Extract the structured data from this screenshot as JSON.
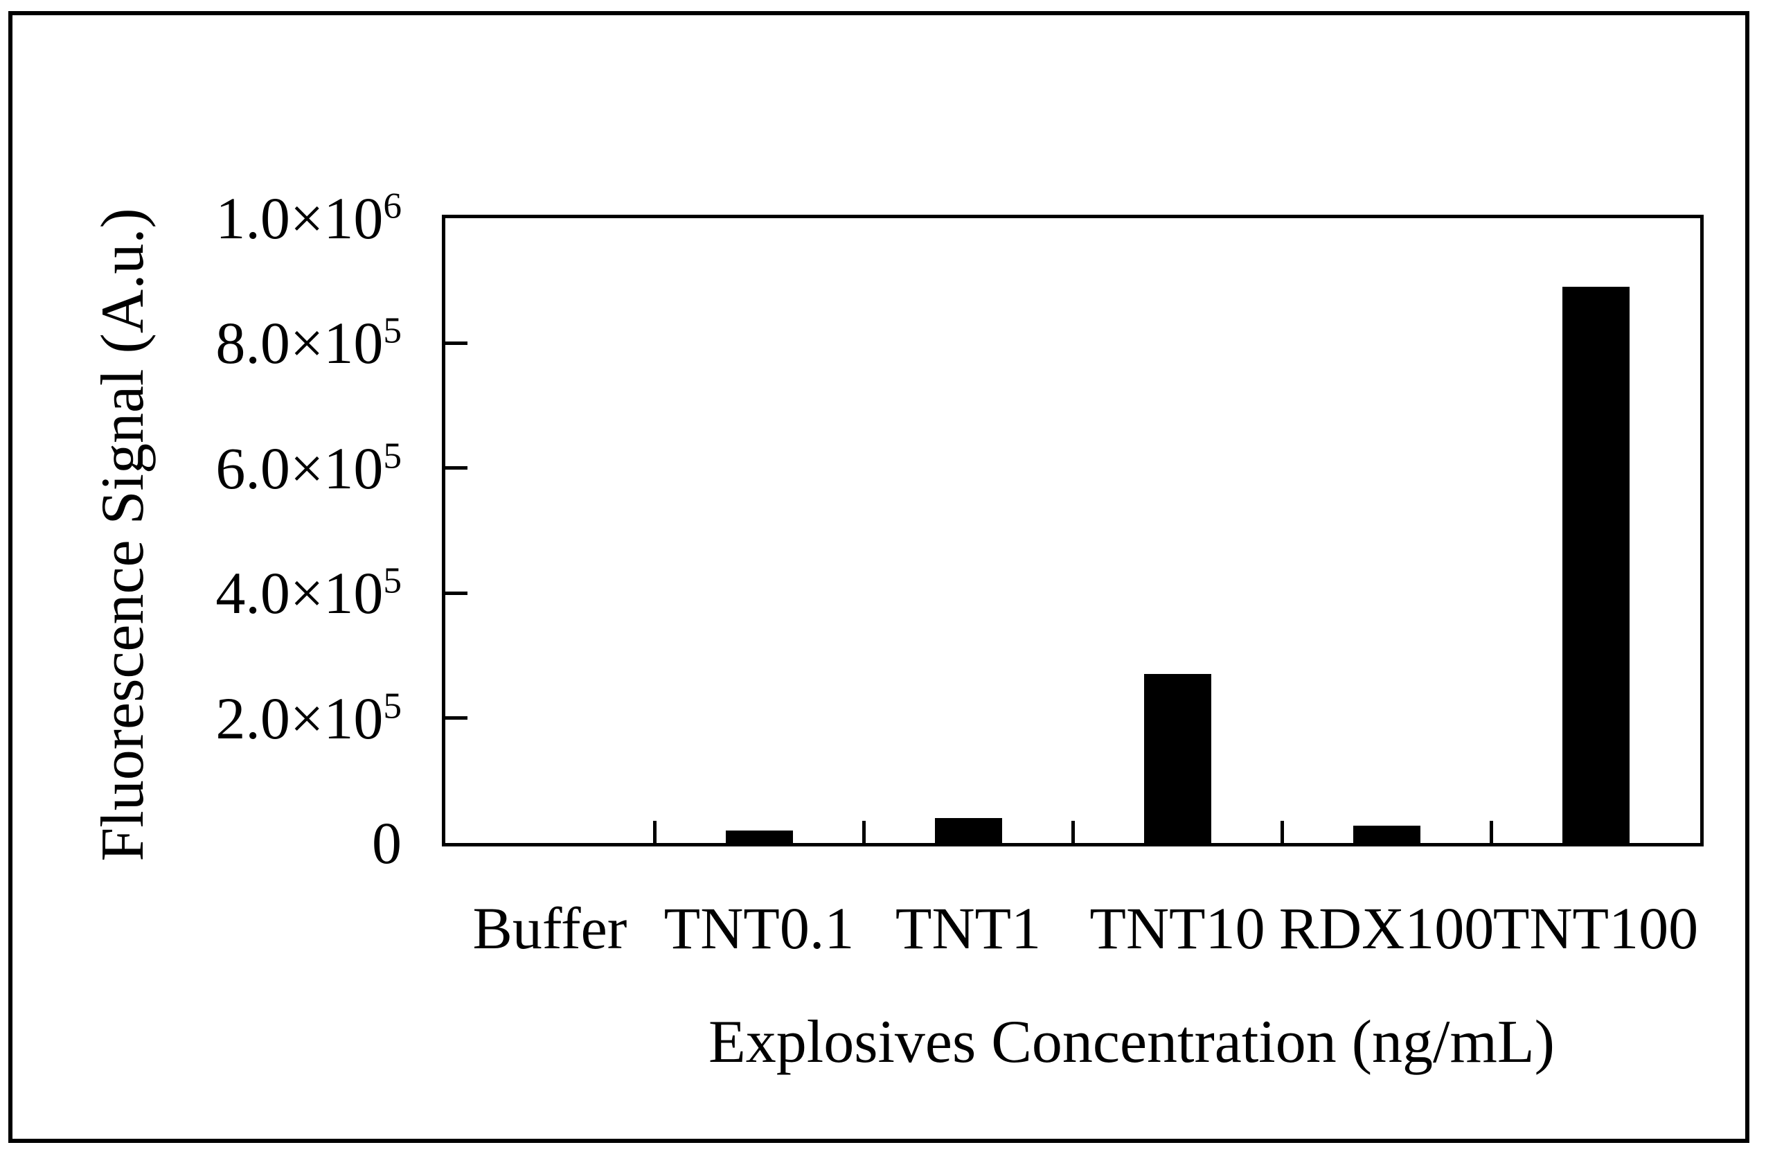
{
  "chart_data": {
    "type": "bar",
    "title": "",
    "xlabel": "Explosives Concentration (ng/mL)",
    "ylabel": "Fluorescence Signal (A.u.)",
    "categories": [
      "Buffer",
      "TNT0.1",
      "TNT1",
      "TNT10",
      "RDX100",
      "TNT100"
    ],
    "values": [
      0,
      20000,
      40000,
      270000,
      28000,
      890000
    ],
    "ylim": [
      0,
      1000000
    ],
    "yticks": [
      {
        "value": 1000000,
        "base": "1.0×10",
        "exp": "6"
      },
      {
        "value": 800000,
        "base": "8.0×10",
        "exp": "5"
      },
      {
        "value": 600000,
        "base": "6.0×10",
        "exp": "5"
      },
      {
        "value": 400000,
        "base": "4.0×10",
        "exp": "5"
      },
      {
        "value": 200000,
        "base": "2.0×10",
        "exp": "5"
      },
      {
        "value": 0,
        "base": "0",
        "exp": ""
      }
    ],
    "grid": false,
    "legend": null,
    "bar_color": "#000000",
    "axis_color": "#000000",
    "background_color": "#ffffff"
  }
}
